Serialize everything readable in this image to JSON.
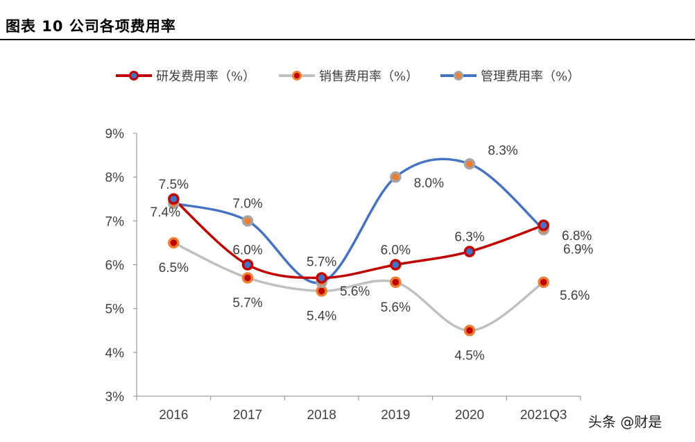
{
  "title": "图表 10 公司各项费用率",
  "watermark": "头条 @财是",
  "chart_data": {
    "type": "line",
    "categories": [
      "2016",
      "2017",
      "2018",
      "2019",
      "2020",
      "2021Q3"
    ],
    "ylim": [
      3,
      9
    ],
    "yticks": [
      "3%",
      "4%",
      "5%",
      "6%",
      "7%",
      "8%",
      "9%"
    ],
    "legend_placement": "top",
    "series": [
      {
        "name": "研发费用率（%）",
        "values": [
          7.5,
          6.0,
          5.7,
          6.0,
          6.3,
          6.9
        ],
        "labels": [
          "7.5%",
          "6.0%",
          "5.7%",
          "6.0%",
          "6.3%",
          "6.9%"
        ],
        "line": "#C00000",
        "border": "#C00000",
        "fill": "#4472C4"
      },
      {
        "name": "销售费用率（%）",
        "values": [
          6.5,
          5.7,
          5.4,
          5.6,
          4.5,
          5.6
        ],
        "labels": [
          "6.5%",
          "5.7%",
          "5.4%",
          "5.6%",
          "4.5%",
          "5.6%"
        ],
        "line": "#C0C0C0",
        "border": "#ED7D31",
        "fill": "#C00000"
      },
      {
        "name": "管理费用率（%）",
        "values": [
          7.4,
          7.0,
          5.6,
          8.0,
          8.3,
          6.8
        ],
        "labels": [
          "7.4%",
          "7.0%",
          "5.6%",
          "8.0%",
          "8.3%",
          "6.8%"
        ],
        "line": "#4472C4",
        "border": "#A5A5A5",
        "fill": "#ED7D31"
      }
    ]
  }
}
